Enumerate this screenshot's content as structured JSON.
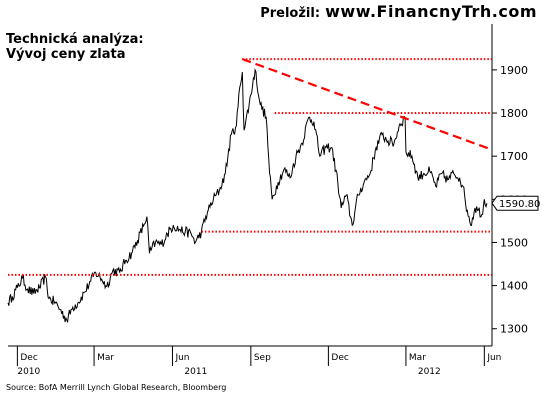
{
  "credit": {
    "label": "Preložil:",
    "url": "www.FinancnyTrh.com"
  },
  "source": "Source: BofA Merrill Lynch Global Research, Bloomberg",
  "chart_data": {
    "type": "line",
    "title": "Technická analýza:",
    "subtitle": "Vývoj ceny zlata",
    "xlabel": "",
    "ylabel": "",
    "ylim": [
      1260,
      1960
    ],
    "yticks": [
      1300,
      1400,
      1500,
      1600,
      1700,
      1800,
      1900
    ],
    "x_range": [
      "2010-11-20",
      "2012-06-10"
    ],
    "x_month_ticks": [
      {
        "label": "Dec",
        "date": "2010-12-01"
      },
      {
        "label": "Mar",
        "date": "2011-03-01"
      },
      {
        "label": "Jun",
        "date": "2011-06-01"
      },
      {
        "label": "Sep",
        "date": "2011-09-01"
      },
      {
        "label": "Dec",
        "date": "2011-12-01"
      },
      {
        "label": "Mar",
        "date": "2012-03-01"
      },
      {
        "label": "Jun",
        "date": "2012-06-01"
      }
    ],
    "x_year_labels": [
      {
        "label": "2010",
        "date": "2010-12-01"
      },
      {
        "label": "2011",
        "date": "2011-06-15"
      },
      {
        "label": "2012",
        "date": "2012-03-15"
      }
    ],
    "last_value_label": "1590.80",
    "line_color": "#000000",
    "annotation_color": "#ff0000",
    "series": [
      {
        "points": [
          [
            "2010-11-20",
            1360
          ],
          [
            "2010-11-25",
            1375
          ],
          [
            "2010-12-01",
            1395
          ],
          [
            "2010-12-07",
            1418
          ],
          [
            "2010-12-13",
            1392
          ],
          [
            "2010-12-20",
            1382
          ],
          [
            "2010-12-27",
            1395
          ],
          [
            "2011-01-03",
            1420
          ],
          [
            "2011-01-07",
            1370
          ],
          [
            "2011-01-14",
            1362
          ],
          [
            "2011-01-20",
            1345
          ],
          [
            "2011-01-28",
            1320
          ],
          [
            "2011-02-04",
            1350
          ],
          [
            "2011-02-10",
            1360
          ],
          [
            "2011-02-18",
            1385
          ],
          [
            "2011-02-25",
            1410
          ],
          [
            "2011-03-03",
            1430
          ],
          [
            "2011-03-10",
            1415
          ],
          [
            "2011-03-16",
            1398
          ],
          [
            "2011-03-23",
            1435
          ],
          [
            "2011-03-31",
            1430
          ],
          [
            "2011-04-07",
            1458
          ],
          [
            "2011-04-14",
            1475
          ],
          [
            "2011-04-21",
            1505
          ],
          [
            "2011-04-28",
            1538
          ],
          [
            "2011-05-02",
            1560
          ],
          [
            "2011-05-05",
            1475
          ],
          [
            "2011-05-12",
            1500
          ],
          [
            "2011-05-19",
            1495
          ],
          [
            "2011-05-26",
            1520
          ],
          [
            "2011-06-02",
            1540
          ],
          [
            "2011-06-09",
            1530
          ],
          [
            "2011-06-16",
            1525
          ],
          [
            "2011-06-23",
            1520
          ],
          [
            "2011-06-28",
            1500
          ],
          [
            "2011-07-05",
            1525
          ],
          [
            "2011-07-12",
            1570
          ],
          [
            "2011-07-19",
            1600
          ],
          [
            "2011-07-26",
            1620
          ],
          [
            "2011-08-02",
            1660
          ],
          [
            "2011-08-09",
            1750
          ],
          [
            "2011-08-15",
            1770
          ],
          [
            "2011-08-19",
            1860
          ],
          [
            "2011-08-22",
            1895
          ],
          [
            "2011-08-24",
            1760
          ],
          [
            "2011-08-30",
            1820
          ],
          [
            "2011-09-06",
            1900
          ],
          [
            "2011-09-12",
            1820
          ],
          [
            "2011-09-19",
            1790
          ],
          [
            "2011-09-23",
            1660
          ],
          [
            "2011-09-26",
            1600
          ],
          [
            "2011-10-03",
            1640
          ],
          [
            "2011-10-10",
            1670
          ],
          [
            "2011-10-17",
            1650
          ],
          [
            "2011-10-24",
            1700
          ],
          [
            "2011-10-31",
            1730
          ],
          [
            "2011-11-08",
            1790
          ],
          [
            "2011-11-14",
            1780
          ],
          [
            "2011-11-21",
            1700
          ],
          [
            "2011-11-28",
            1720
          ],
          [
            "2011-12-05",
            1720
          ],
          [
            "2011-12-12",
            1640
          ],
          [
            "2011-12-16",
            1580
          ],
          [
            "2011-12-22",
            1610
          ],
          [
            "2011-12-29",
            1540
          ],
          [
            "2012-01-05",
            1610
          ],
          [
            "2012-01-12",
            1640
          ],
          [
            "2012-01-19",
            1660
          ],
          [
            "2012-01-26",
            1720
          ],
          [
            "2012-02-02",
            1750
          ],
          [
            "2012-02-09",
            1735
          ],
          [
            "2012-02-16",
            1730
          ],
          [
            "2012-02-23",
            1775
          ],
          [
            "2012-02-29",
            1790
          ],
          [
            "2012-03-01",
            1710
          ],
          [
            "2012-03-08",
            1700
          ],
          [
            "2012-03-15",
            1650
          ],
          [
            "2012-03-22",
            1660
          ],
          [
            "2012-03-29",
            1665
          ],
          [
            "2012-04-05",
            1630
          ],
          [
            "2012-04-12",
            1660
          ],
          [
            "2012-04-19",
            1645
          ],
          [
            "2012-04-26",
            1660
          ],
          [
            "2012-05-03",
            1650
          ],
          [
            "2012-05-07",
            1630
          ],
          [
            "2012-05-10",
            1590
          ],
          [
            "2012-05-14",
            1560
          ],
          [
            "2012-05-16",
            1540
          ],
          [
            "2012-05-21",
            1580
          ],
          [
            "2012-05-25",
            1575
          ],
          [
            "2012-05-30",
            1565
          ],
          [
            "2012-06-01",
            1600
          ],
          [
            "2012-06-04",
            1591
          ]
        ]
      }
    ],
    "annotations": [
      {
        "kind": "hline",
        "y": 1925,
        "from": "2011-08-22",
        "to": "2012-06-10",
        "style": "dotted"
      },
      {
        "kind": "hline",
        "y": 1800,
        "from": "2011-09-29",
        "to": "2012-06-10",
        "style": "dotted"
      },
      {
        "kind": "hline",
        "y": 1525,
        "from": "2011-07-05",
        "to": "2012-06-10",
        "style": "dotted"
      },
      {
        "kind": "hline",
        "y": 1425,
        "from": "2010-11-20",
        "to": "2012-06-10",
        "style": "dotted"
      },
      {
        "kind": "trendline",
        "from": [
          "2011-08-22",
          1925
        ],
        "to": [
          "2012-06-10",
          1715
        ],
        "style": "dashed"
      }
    ]
  }
}
